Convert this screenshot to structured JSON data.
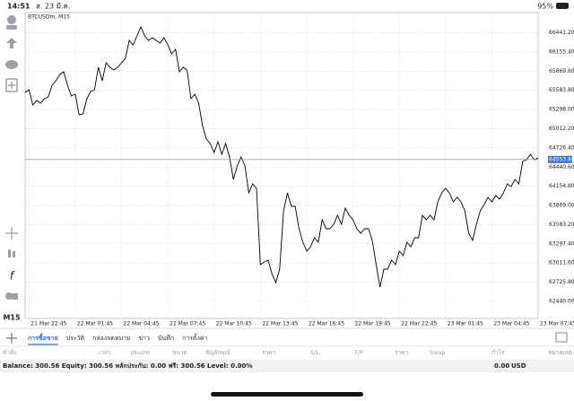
{
  "status_bar": {
    "time": "14:51",
    "date": "ส. 23 มี.ค.",
    "battery": "95%"
  },
  "chart_data": {
    "type": "line",
    "title": "BTCUSDm, M15",
    "color": "#000000",
    "grid": true,
    "values": [
      65553,
      65593,
      65366,
      65433,
      65393,
      65459,
      65486,
      65660,
      65727,
      65820,
      65860,
      65660,
      65499,
      65526,
      65219,
      65232,
      65459,
      65566,
      65593,
      65927,
      65727,
      65994,
      65927,
      65887,
      65927,
      65994,
      66061,
      66328,
      66261,
      66395,
      66528,
      66395,
      66328,
      66368,
      66328,
      66288,
      66368,
      66261,
      66127,
      66194,
      65860,
      65927,
      65887,
      65459,
      65526,
      65393,
      65059,
      64858,
      64791,
      64658,
      64818,
      64631,
      64791,
      64591,
      64257,
      64457,
      64591,
      64457,
      64057,
      64190,
      64123,
      62988,
      63028,
      63055,
      62854,
      62721,
      62921,
      63789,
      64057,
      63856,
      63856,
      63522,
      63322,
      63188,
      63255,
      63389,
      63322,
      63656,
      63522,
      63522,
      63589,
      63723,
      63589,
      63829,
      63723,
      63656,
      63522,
      63455,
      63522,
      63522,
      63348,
      62988,
      62654,
      62921,
      62921,
      63055,
      62988,
      63188,
      63121,
      63322,
      63255,
      63389,
      63389,
      63723,
      63656,
      63723,
      63656,
      63923,
      64057,
      64123,
      64057,
      63923,
      63990,
      63923,
      63789,
      63455,
      63348,
      63589,
      63789,
      63883,
      63990,
      63923,
      64016,
      63963,
      64057,
      64190,
      64150,
      64257,
      64190,
      64524,
      64551,
      64631,
      64551,
      64578
    ],
    "xlim": [
      0,
      133
    ],
    "xticks": [
      {
        "value": 1,
        "label": "21 Mar 22:45"
      },
      {
        "value": 13,
        "label": "22 Mar 01:45"
      },
      {
        "value": 25,
        "label": "22 Mar 04:45"
      },
      {
        "value": 37,
        "label": "22 Mar 07:45"
      },
      {
        "value": 49,
        "label": "22 Mar 10:45"
      },
      {
        "value": 61,
        "label": "22 Mar 13:45"
      },
      {
        "value": 73,
        "label": "22 Mar 16:45"
      },
      {
        "value": 85,
        "label": "22 Mar 19:45"
      },
      {
        "value": 97,
        "label": "22 Mar 22:45"
      },
      {
        "value": 109,
        "label": "23 Mar 01:45"
      },
      {
        "value": 121,
        "label": "23 Mar 04:45"
      },
      {
        "value": 133,
        "label": "23 Mar 07:45"
      }
    ],
    "ylim": [
      62186,
      66742
    ],
    "yticks": [
      {
        "value": 66441.2,
        "label": "66441.20"
      },
      {
        "value": 66155.4,
        "label": "66155.40"
      },
      {
        "value": 65869.6,
        "label": "65869.60"
      },
      {
        "value": 65583.8,
        "label": "65583.80"
      },
      {
        "value": 65298,
        "label": "65298.00"
      },
      {
        "value": 65012.2,
        "label": "65012.20"
      },
      {
        "value": 64726.4,
        "label": "64726.40"
      },
      {
        "value": 64440.6,
        "label": "64440.60"
      },
      {
        "value": 64154.8,
        "label": "64154.80"
      },
      {
        "value": 63869,
        "label": "63869.00"
      },
      {
        "value": 63583.2,
        "label": "63583.20"
      },
      {
        "value": 63297.4,
        "label": "63297.40"
      },
      {
        "value": 63011.6,
        "label": "63011.60"
      },
      {
        "value": 62725.8,
        "label": "62725.80"
      },
      {
        "value": 62440,
        "label": "62440.00"
      }
    ],
    "current_price": 64553.89
  },
  "timeframe": "M15",
  "tabs": [
    "การซื้อขาย",
    "ประวัติ",
    "กล่องจดหมาย",
    "ข่าว",
    "บันทึก",
    "การตั้งค่า"
  ],
  "columns": [
    "คำสั่ง",
    "เวลา",
    "ประเภท",
    "ขนาด",
    "สัญลักษณ์",
    "ราคา",
    "S/L",
    "T/P",
    "ราคา",
    "Swap",
    "กำไร",
    "หมายเหตุ"
  ],
  "balance": {
    "text": "Balance: 300.56 Equity: 300.56 หลักประกัน: 0.00 ฟรี: 300.56 Level: 0.00%",
    "profit": "0.00",
    "currency": "USD"
  }
}
